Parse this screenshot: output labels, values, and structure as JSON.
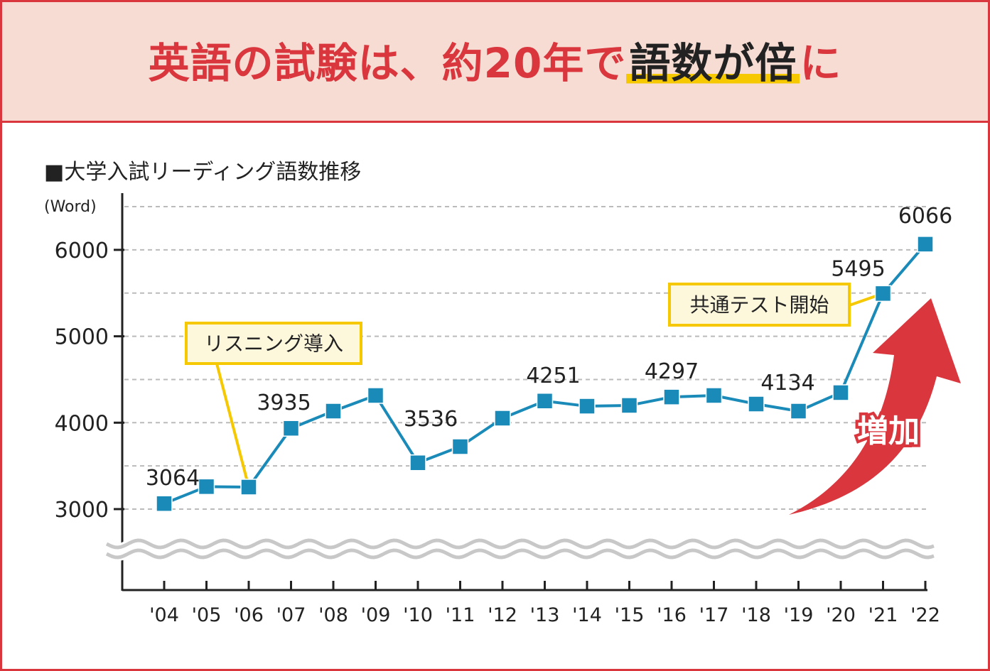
{
  "header": {
    "title_pre": "英語の試験は、約20年で",
    "title_highlight": "語数が倍",
    "title_post": "に"
  },
  "chart_data": {
    "type": "line",
    "title": "■大学入試リーディング語数推移",
    "ylabel": "(Word)",
    "categories": [
      "'04",
      "'05",
      "'06",
      "'07",
      "'08",
      "'09",
      "'10",
      "'11",
      "'12",
      "'13",
      "'14",
      "'15",
      "'16",
      "'17",
      "'18",
      "'19",
      "'20",
      "'21",
      "'22"
    ],
    "values": [
      3064,
      3260,
      3255,
      3935,
      4134,
      4315,
      3536,
      3723,
      4052,
      4251,
      4191,
      4200,
      4297,
      4315,
      4216,
      4134,
      4348,
      5495,
      6066
    ],
    "data_labels": [
      {
        "index": 0,
        "text": "3064"
      },
      {
        "index": 3,
        "text": "3935"
      },
      {
        "index": 6,
        "text": "3536"
      },
      {
        "index": 9,
        "text": "4251"
      },
      {
        "index": 12,
        "text": "4297"
      },
      {
        "index": 15,
        "text": "4134"
      },
      {
        "index": 17,
        "text": "5495"
      },
      {
        "index": 18,
        "text": "6066"
      }
    ],
    "yticks": [
      "3000",
      "4000",
      "5000",
      "6000"
    ],
    "ylim": [
      3000,
      6500
    ],
    "y_axis_break": true,
    "grid": "dashed horizontal",
    "annotations": [
      {
        "index": 2,
        "text": "リスニング導入"
      },
      {
        "index": 17,
        "text": "共通テスト開始"
      }
    ],
    "arrow_label": "増加",
    "colors": {
      "line": "#1a8ab8",
      "accent": "#d9363e",
      "callout_border": "#f5c800",
      "callout_fill": "#fdf7dc",
      "highlight": "#f5c800"
    }
  }
}
